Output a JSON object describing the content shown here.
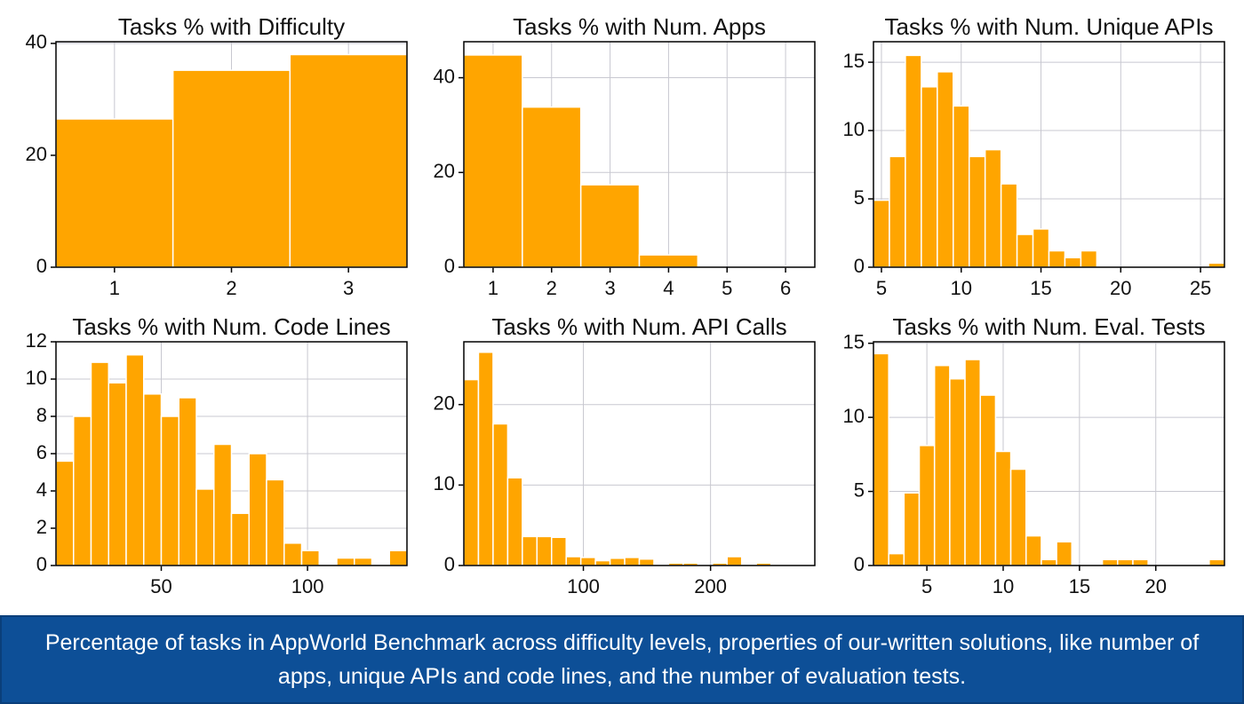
{
  "chart_data": [
    {
      "type": "histogram",
      "title": "Tasks % with Difficulty",
      "bins": [
        0.5,
        1.5,
        2.5,
        3.5
      ],
      "values": [
        26.5,
        35.2,
        38.0
      ],
      "color": "#ffa500",
      "xlim": [
        0.5,
        3.5
      ],
      "ylim": [
        0,
        40.3
      ],
      "xticks": [
        1,
        2,
        3
      ],
      "yticks": [
        0,
        20,
        40
      ],
      "grid": true
    },
    {
      "type": "histogram",
      "title": "Tasks % with Num. Apps",
      "bins": [
        0.5,
        1.5,
        2.5,
        3.5,
        4.5,
        5.5,
        6.5
      ],
      "values": [
        44.8,
        33.8,
        17.4,
        2.6,
        0,
        0.2
      ],
      "color": "#ffa500",
      "xlim": [
        0.5,
        6.5
      ],
      "ylim": [
        0,
        47.6
      ],
      "xticks": [
        1,
        2,
        3,
        4,
        5,
        6
      ],
      "yticks": [
        0,
        20,
        40
      ],
      "grid": true
    },
    {
      "type": "histogram",
      "title": "Tasks % with Num. Unique APIs",
      "bins": [
        4.5,
        5.5,
        6.5,
        7.5,
        8.5,
        9.5,
        10.5,
        11.5,
        12.5,
        13.5,
        14.5,
        15.5,
        16.5,
        17.5,
        18.5,
        19.5,
        20.5,
        21.5,
        22.5,
        23.5,
        24.5,
        25.5,
        26.5
      ],
      "values": [
        4.9,
        8.1,
        15.5,
        13.2,
        14.3,
        11.8,
        8.1,
        8.6,
        6.1,
        2.4,
        2.8,
        1.2,
        0.7,
        1.2,
        0,
        0,
        0,
        0,
        0,
        0,
        0,
        0.3
      ],
      "color": "#ffa500",
      "xlim": [
        4.5,
        26.5
      ],
      "ylim": [
        0,
        16.5
      ],
      "xticks": [
        5,
        10,
        15,
        20,
        25
      ],
      "yticks": [
        0,
        5,
        10,
        15
      ],
      "grid": true
    },
    {
      "type": "histogram",
      "title": "Tasks % with Num. Code Lines",
      "bins": [
        14,
        20,
        26,
        32,
        38,
        44,
        50,
        56,
        62,
        68,
        74,
        80,
        86,
        92,
        98,
        104,
        110,
        116,
        122,
        128,
        134
      ],
      "values": [
        5.6,
        8.0,
        10.9,
        9.8,
        11.3,
        9.2,
        8.0,
        9.0,
        4.1,
        6.5,
        2.8,
        6.0,
        4.6,
        1.2,
        0.8,
        0,
        0.4,
        0.4,
        0,
        0.8
      ],
      "color": "#ffa500",
      "xlim": [
        14,
        134
      ],
      "ylim": [
        0,
        12
      ],
      "xticks": [
        50,
        100
      ],
      "yticks": [
        0,
        2,
        4,
        6,
        8,
        10,
        12
      ],
      "grid": true
    },
    {
      "type": "histogram",
      "title": "Tasks % with Num. API Calls",
      "bins": [
        6,
        17.5,
        29,
        40.5,
        52,
        63.5,
        75,
        86.5,
        98,
        109.5,
        121,
        132.5,
        144,
        155.5,
        167,
        178.5,
        190,
        201.5,
        213,
        224.5,
        236,
        247.5,
        259,
        270.5,
        282
      ],
      "values": [
        23.1,
        26.5,
        17.6,
        10.9,
        3.6,
        3.6,
        3.5,
        1.1,
        1.0,
        0.6,
        0.9,
        1.0,
        0.8,
        0,
        0.3,
        0.3,
        0,
        0.3,
        1.1,
        0,
        0.3,
        0,
        0,
        0
      ],
      "color": "#ffa500",
      "xlim": [
        6,
        282
      ],
      "ylim": [
        0,
        27.8
      ],
      "xticks": [
        100,
        200
      ],
      "yticks": [
        0,
        10,
        20
      ],
      "grid": true
    },
    {
      "type": "histogram",
      "title": "Tasks % with Num. Eval. Tests",
      "bins": [
        1.5,
        2.5,
        3.5,
        4.5,
        5.5,
        6.5,
        7.5,
        8.5,
        9.5,
        10.5,
        11.5,
        12.5,
        13.5,
        14.5,
        15.5,
        16.5,
        17.5,
        18.5,
        19.5,
        20.5,
        21.5,
        22.5,
        23.5,
        24.5
      ],
      "values": [
        14.3,
        0.8,
        4.9,
        8.1,
        13.5,
        12.6,
        13.9,
        11.5,
        7.7,
        6.5,
        2.0,
        0.4,
        1.6,
        0,
        0,
        0.4,
        0.4,
        0.4,
        0,
        0,
        0,
        0,
        0.4
      ],
      "color": "#ffa500",
      "xlim": [
        1.5,
        24.5
      ],
      "ylim": [
        0,
        15.1
      ],
      "xticks": [
        5,
        10,
        15,
        20
      ],
      "yticks": [
        0,
        5,
        10,
        15
      ],
      "grid": true
    }
  ],
  "caption": "Percentage of tasks in AppWorld Benchmark across difficulty levels, properties of our-written solutions, like number of apps, unique APIs and code lines, and the number of evaluation tests."
}
